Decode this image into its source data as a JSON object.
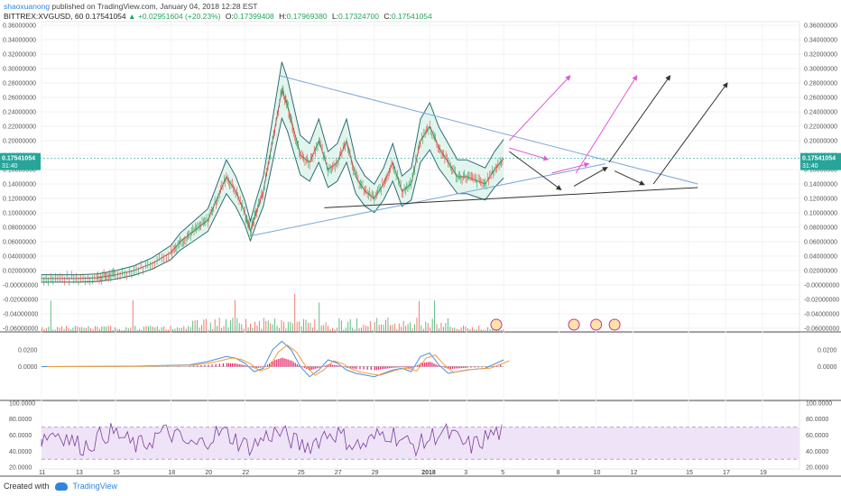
{
  "header": {
    "username": "shaoxuanong",
    "published": "published on TradingView.com, January 04, 2018 12:28 EST"
  },
  "ohlc": {
    "symbol": "BITTREX:XVGUSD, 60",
    "last": "0.17541054",
    "change": "+0.02951604 (+20.23%)",
    "o_label": "O:",
    "o": "0.17399408",
    "h_label": "H:",
    "h": "0.17969380",
    "l_label": "L:",
    "l": "0.17324700",
    "c_label": "C:",
    "c": "0.17541054"
  },
  "footer": {
    "created": "Created with",
    "brand": "TradingView"
  },
  "colors": {
    "up": "#26a65b",
    "down": "#e74c3c",
    "bb": "#2c6e73",
    "bb_fill": "#dff3ec",
    "trend_blue": "#7ea7d8",
    "trend_black": "#333333",
    "arrow_pink": "#e05ad8",
    "macd_blue": "#4a90d9",
    "macd_orange": "#f39c3c",
    "macd_hist": "#e91e63",
    "rsi_line": "#7b3fa0",
    "rsi_band": "#efe4f7",
    "price_tag": "#26a69a"
  },
  "chart_data": [
    {
      "type": "line",
      "name": "price",
      "y_ticks": [
        "0.36000000",
        "0.34000000",
        "0.32000000",
        "0.30000000",
        "0.28000000",
        "0.26000000",
        "0.24000000",
        "0.22000000",
        "0.20000000",
        "0.18000000",
        "0.16000000",
        "0.14000000",
        "0.12000000",
        "0.10000000",
        "0.08000000",
        "0.06000000",
        "0.04000000",
        "0.02000000",
        "-0.00000000",
        "-0.02000000",
        "-0.04000000",
        "-0.06000000"
      ],
      "ylim": [
        -0.065,
        0.365
      ],
      "x_ticks": [
        "11",
        "13",
        "15",
        "18",
        "20",
        "22",
        "25",
        "27",
        "29",
        "2018",
        "3",
        "5",
        "8",
        "10",
        "12",
        "15",
        "17",
        "19"
      ],
      "x_tick_pos": [
        0,
        2,
        4,
        7,
        9,
        11,
        14,
        16,
        18,
        21,
        23,
        25,
        28,
        30,
        32,
        35,
        37,
        39
      ],
      "x_days": [
        [
          0,
          0.009
        ],
        [
          1,
          0.009
        ],
        [
          2,
          0.009
        ],
        [
          3,
          0.01
        ],
        [
          3.5,
          0.012
        ],
        [
          4,
          0.014
        ],
        [
          5,
          0.02
        ],
        [
          6,
          0.03
        ],
        [
          7,
          0.045
        ],
        [
          7.5,
          0.06
        ],
        [
          8,
          0.07
        ],
        [
          8.5,
          0.08
        ],
        [
          9,
          0.09
        ],
        [
          9.5,
          0.12
        ],
        [
          10,
          0.15
        ],
        [
          10.5,
          0.13
        ],
        [
          11,
          0.1
        ],
        [
          11.3,
          0.075
        ],
        [
          11.6,
          0.1
        ],
        [
          12,
          0.13
        ],
        [
          12.5,
          0.2
        ],
        [
          13,
          0.27
        ],
        [
          13.3,
          0.25
        ],
        [
          13.6,
          0.22
        ],
        [
          14,
          0.18
        ],
        [
          14.5,
          0.17
        ],
        [
          15,
          0.2
        ],
        [
          15.5,
          0.16
        ],
        [
          16,
          0.17
        ],
        [
          16.5,
          0.2
        ],
        [
          17,
          0.15
        ],
        [
          17.5,
          0.13
        ],
        [
          18,
          0.12
        ],
        [
          18.5,
          0.14
        ],
        [
          19,
          0.17
        ],
        [
          19.5,
          0.13
        ],
        [
          20,
          0.14
        ],
        [
          20.5,
          0.2
        ],
        [
          21,
          0.22
        ],
        [
          21.5,
          0.19
        ],
        [
          22,
          0.17
        ],
        [
          22.5,
          0.15
        ],
        [
          23,
          0.15
        ],
        [
          23.5,
          0.145
        ],
        [
          24,
          0.14
        ],
        [
          24.5,
          0.16
        ],
        [
          25,
          0.175
        ]
      ],
      "last_price_label": "0.17541054",
      "last_time_label": "31:40"
    },
    {
      "type": "line",
      "name": "MACD",
      "y_ticks": [
        "0.0200",
        "0.0000"
      ],
      "ylim": [
        -0.04,
        0.04
      ],
      "macd": [
        [
          0,
          0
        ],
        [
          5,
          0.0005
        ],
        [
          8,
          0.002
        ],
        [
          9,
          0.006
        ],
        [
          10,
          0.012
        ],
        [
          10.5,
          0.01
        ],
        [
          11,
          0.004
        ],
        [
          11.5,
          -0.006
        ],
        [
          12,
          -0.002
        ],
        [
          12.5,
          0.02
        ],
        [
          13,
          0.03
        ],
        [
          13.5,
          0.02
        ],
        [
          14,
          0
        ],
        [
          14.5,
          -0.012
        ],
        [
          15,
          -0.004
        ],
        [
          15.5,
          0.008
        ],
        [
          16,
          0.004
        ],
        [
          16.5,
          -0.004
        ],
        [
          17,
          -0.008
        ],
        [
          18,
          -0.012
        ],
        [
          18.5,
          -0.008
        ],
        [
          19,
          -0.004
        ],
        [
          19.5,
          -0.002
        ],
        [
          20,
          -0.006
        ],
        [
          20.5,
          0.012
        ],
        [
          21,
          0.016
        ],
        [
          21.5,
          0.002
        ],
        [
          22,
          -0.008
        ],
        [
          22.5,
          -0.006
        ],
        [
          23,
          -0.004
        ],
        [
          24,
          -0.002
        ],
        [
          25,
          0.008
        ]
      ]
    },
    {
      "type": "line",
      "name": "RSI",
      "y_ticks": [
        "100.0000",
        "80.0000",
        "60.0000",
        "40.0000",
        "20.0000"
      ],
      "ylim": [
        18,
        102
      ],
      "band": [
        30,
        70
      ]
    }
  ]
}
